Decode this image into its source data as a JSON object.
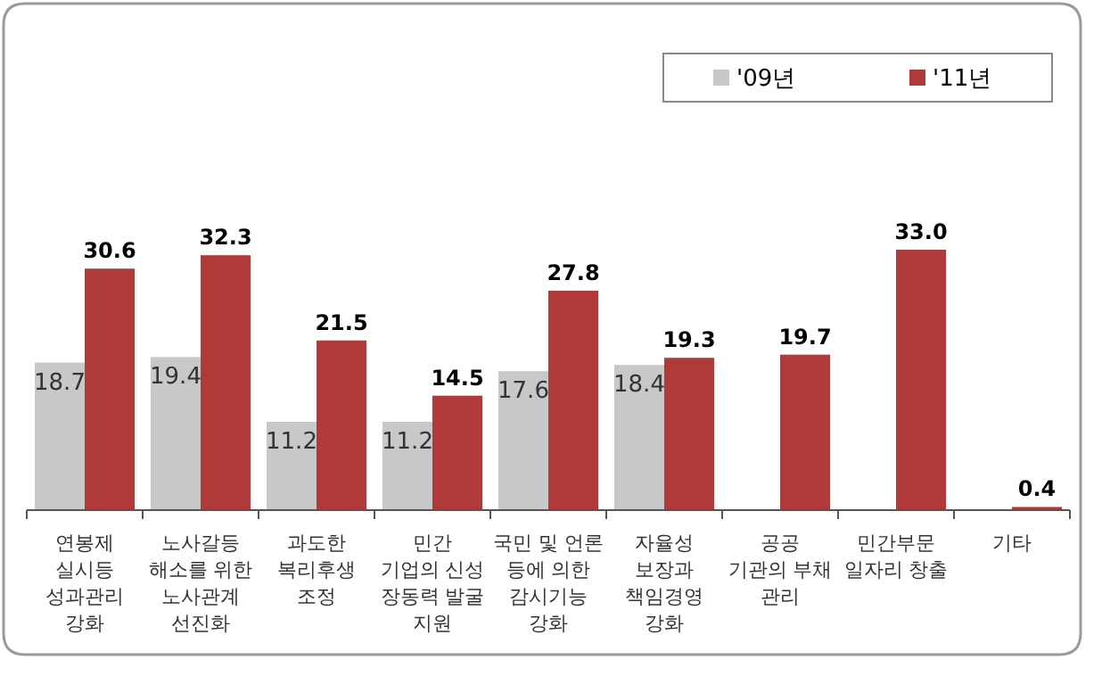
{
  "chart_data": {
    "type": "bar",
    "categories": [
      "연봉제\n실시등\n성과관리\n강화",
      "노사갈등\n해소를 위한\n노사관계\n선진화",
      "과도한\n복리후생\n조정",
      "민간\n기업의 신성\n장동력 발굴\n지원",
      "국민 및 언론\n등에 의한\n감시기능\n강화",
      "자율성\n보장과\n책임경영\n강화",
      "공공\n기관의 부채\n관리",
      "민간부문\n일자리 창출",
      "기타"
    ],
    "series": [
      {
        "name": "'09년",
        "color": "#c8c8c8",
        "values": [
          18.7,
          19.4,
          11.2,
          11.2,
          17.6,
          18.4,
          null,
          null,
          null
        ],
        "value_labels": [
          "18.7",
          "19.4",
          "11.2",
          "11.2",
          "17.6",
          "18.4",
          null,
          null,
          null
        ]
      },
      {
        "name": "'11년",
        "color": "#b03a3a",
        "values": [
          30.6,
          32.3,
          21.5,
          14.5,
          27.8,
          19.3,
          19.7,
          33.0,
          0.4
        ],
        "value_labels": [
          "30.6",
          "32.3",
          "21.5",
          "14.5",
          "27.8",
          "19.3",
          "19.7",
          "33.0",
          "0.4"
        ]
      }
    ],
    "relative": false,
    "legend": "top right"
  }
}
